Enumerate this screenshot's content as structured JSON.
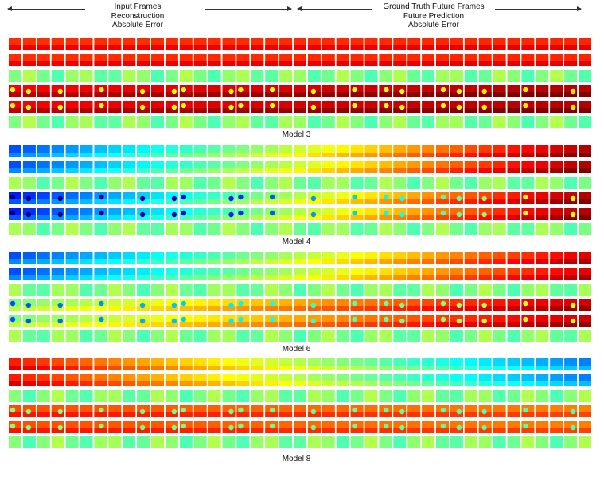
{
  "header": {
    "left": [
      "Input Frames",
      "Reconstruction",
      "Absolute Error"
    ],
    "right": [
      "Ground Truth Future Frames",
      "Future Prediction",
      "Absolute Error"
    ]
  },
  "models": [
    {
      "label": "Model 3",
      "rows": [
        {
          "kind": "frames",
          "start": 0.83,
          "end": 0.84
        },
        {
          "kind": "frames",
          "start": 0.83,
          "end": 0.84
        },
        {
          "kind": "error"
        },
        {
          "kind": "frames",
          "start": 0.88,
          "end": 0.95,
          "blobs": true
        },
        {
          "kind": "frames",
          "start": 0.88,
          "end": 0.95,
          "blobs": true
        },
        {
          "kind": "error"
        }
      ]
    },
    {
      "label": "Model 4",
      "rows": [
        {
          "kind": "frames",
          "start": 0.2,
          "end": 0.95
        },
        {
          "kind": "frames",
          "start": 0.2,
          "end": 0.95
        },
        {
          "kind": "error"
        },
        {
          "kind": "frames",
          "start": 0.15,
          "end": 0.95,
          "blobs": true
        },
        {
          "kind": "frames",
          "start": 0.15,
          "end": 0.95,
          "blobs": true
        },
        {
          "kind": "error"
        }
      ]
    },
    {
      "label": "Model 6",
      "rows": [
        {
          "kind": "frames",
          "start": 0.2,
          "end": 0.9
        },
        {
          "kind": "frames",
          "start": 0.2,
          "end": 0.9
        },
        {
          "kind": "error"
        },
        {
          "kind": "frames",
          "start": 0.5,
          "end": 0.92,
          "blobs": true
        },
        {
          "kind": "frames",
          "start": 0.5,
          "end": 0.92,
          "blobs": true
        },
        {
          "kind": "error"
        }
      ]
    },
    {
      "label": "Model 8",
      "rows": [
        {
          "kind": "frames",
          "start": 0.85,
          "end": 0.25
        },
        {
          "kind": "frames",
          "start": 0.85,
          "end": 0.25
        },
        {
          "kind": "error"
        },
        {
          "kind": "frames",
          "start": 0.8,
          "end": 0.75,
          "blobs": true
        },
        {
          "kind": "frames",
          "start": 0.8,
          "end": 0.75,
          "blobs": true
        },
        {
          "kind": "error"
        }
      ]
    }
  ]
}
